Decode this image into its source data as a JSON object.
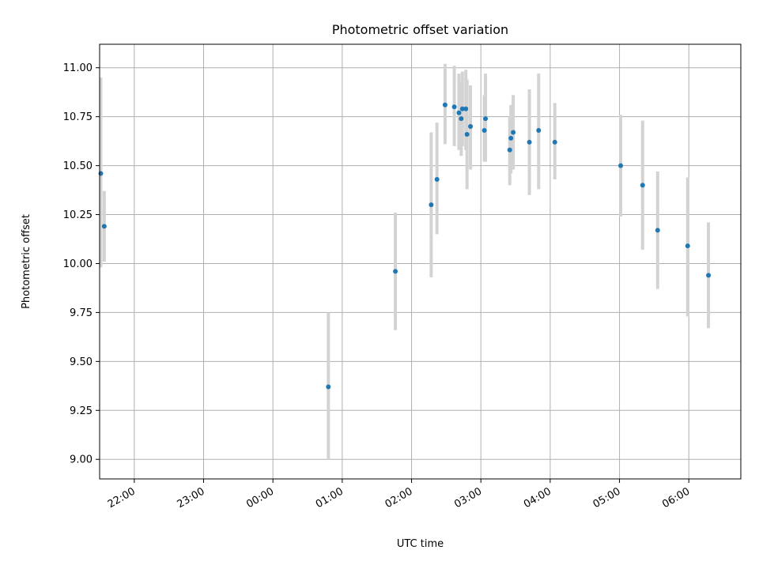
{
  "chart_data": {
    "type": "scatter",
    "title": "Photometric offset variation",
    "xlabel": "UTC time",
    "ylabel": "Photometric offset",
    "grid": true,
    "ylim": [
      8.9,
      11.12
    ],
    "xlim": [
      "21:30",
      "06:45"
    ],
    "x_ticks": [
      "22:00",
      "23:00",
      "00:00",
      "01:00",
      "02:00",
      "03:00",
      "04:00",
      "05:00",
      "06:00"
    ],
    "y_ticks": [
      "9.00",
      "9.25",
      "9.50",
      "9.75",
      "10.00",
      "10.25",
      "10.50",
      "10.75",
      "11.00"
    ],
    "colors": {
      "point": "#1f77b4",
      "error_bar": "#d3d3d3",
      "grid": "#b0b0b0"
    },
    "points": [
      {
        "t": "21:31",
        "y": 10.46,
        "lo": 9.98,
        "hi": 10.95
      },
      {
        "t": "21:34",
        "y": 10.19,
        "lo": 10.01,
        "hi": 10.37
      },
      {
        "t": "00:48",
        "y": 9.37,
        "lo": 9.0,
        "hi": 9.75
      },
      {
        "t": "01:46",
        "y": 9.96,
        "lo": 9.66,
        "hi": 10.26
      },
      {
        "t": "02:17",
        "y": 10.3,
        "lo": 9.93,
        "hi": 10.67
      },
      {
        "t": "02:22",
        "y": 10.43,
        "lo": 10.15,
        "hi": 10.72
      },
      {
        "t": "02:29",
        "y": 10.81,
        "lo": 10.61,
        "hi": 11.02
      },
      {
        "t": "02:37",
        "y": 10.8,
        "lo": 10.6,
        "hi": 11.01
      },
      {
        "t": "02:41",
        "y": 10.77,
        "lo": 10.58,
        "hi": 10.97
      },
      {
        "t": "02:43",
        "y": 10.74,
        "lo": 10.55,
        "hi": 10.93
      },
      {
        "t": "02:44",
        "y": 10.79,
        "lo": 10.6,
        "hi": 10.98
      },
      {
        "t": "02:47",
        "y": 10.79,
        "lo": 10.58,
        "hi": 10.99
      },
      {
        "t": "02:48",
        "y": 10.66,
        "lo": 10.38,
        "hi": 10.94
      },
      {
        "t": "02:51",
        "y": 10.7,
        "lo": 10.48,
        "hi": 10.91
      },
      {
        "t": "03:03",
        "y": 10.68,
        "lo": 10.52,
        "hi": 10.86
      },
      {
        "t": "03:04",
        "y": 10.74,
        "lo": 10.52,
        "hi": 10.97
      },
      {
        "t": "03:25",
        "y": 10.58,
        "lo": 10.4,
        "hi": 10.75
      },
      {
        "t": "03:26",
        "y": 10.64,
        "lo": 10.46,
        "hi": 10.81
      },
      {
        "t": "03:28",
        "y": 10.67,
        "lo": 10.48,
        "hi": 10.86
      },
      {
        "t": "03:42",
        "y": 10.62,
        "lo": 10.35,
        "hi": 10.89
      },
      {
        "t": "03:50",
        "y": 10.68,
        "lo": 10.38,
        "hi": 10.97
      },
      {
        "t": "04:04",
        "y": 10.62,
        "lo": 10.43,
        "hi": 10.82
      },
      {
        "t": "05:01",
        "y": 10.5,
        "lo": 10.24,
        "hi": 10.76
      },
      {
        "t": "05:20",
        "y": 10.4,
        "lo": 10.07,
        "hi": 10.73
      },
      {
        "t": "05:33",
        "y": 10.17,
        "lo": 9.87,
        "hi": 10.47
      },
      {
        "t": "05:59",
        "y": 10.09,
        "lo": 9.73,
        "hi": 10.44
      },
      {
        "t": "06:17",
        "y": 9.94,
        "lo": 9.67,
        "hi": 10.21
      }
    ]
  }
}
